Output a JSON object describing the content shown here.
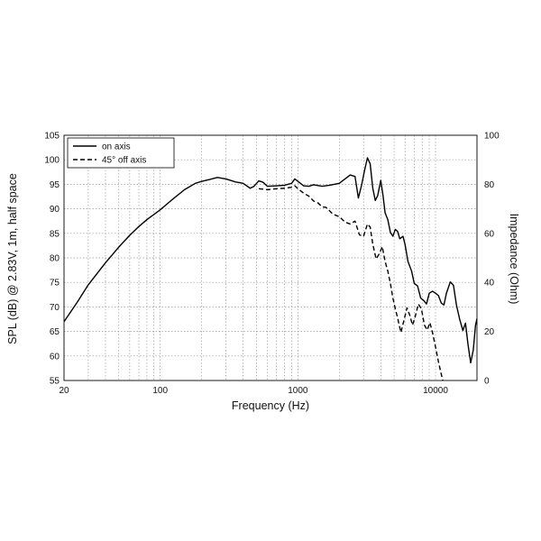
{
  "chart_data": {
    "type": "line",
    "xscale": "log",
    "xlim": [
      20,
      20000
    ],
    "ylim": [
      55,
      105
    ],
    "y2lim": [
      0,
      100
    ],
    "xlabel": "Frequency (Hz)",
    "ylabel": "SPL (dB) @ 2.83V, 1m, half space",
    "y2label": "Impedance (Ohm)",
    "x_ticks": [
      20,
      100,
      1000,
      10000
    ],
    "x_tick_labels": [
      "20",
      "100",
      "1000",
      "10000"
    ],
    "y_ticks": [
      55,
      60,
      65,
      70,
      75,
      80,
      85,
      90,
      95,
      100,
      105
    ],
    "y_tick_labels": [
      "55",
      "60",
      "65",
      "70",
      "75",
      "80",
      "85",
      "90",
      "95",
      "100",
      "105"
    ],
    "y2_ticks": [
      0,
      20,
      40,
      60,
      80,
      100
    ],
    "y2_tick_labels": [
      "0",
      "20",
      "40",
      "60",
      "80",
      "100"
    ],
    "grid": true,
    "legend": "top-left",
    "series": [
      {
        "name": "on axis",
        "style": "solid",
        "color": "#000000",
        "points": [
          [
            20,
            67
          ],
          [
            25,
            71
          ],
          [
            30,
            74.5
          ],
          [
            40,
            79
          ],
          [
            50,
            82.2
          ],
          [
            60,
            84.6
          ],
          [
            70,
            86.4
          ],
          [
            80,
            87.8
          ],
          [
            100,
            89.8
          ],
          [
            120,
            91.7
          ],
          [
            150,
            93.9
          ],
          [
            180,
            95.2
          ],
          [
            200,
            95.6
          ],
          [
            230,
            96
          ],
          [
            260,
            96.4
          ],
          [
            300,
            96.1
          ],
          [
            350,
            95.5
          ],
          [
            400,
            95.2
          ],
          [
            450,
            94.2
          ],
          [
            480,
            94.6
          ],
          [
            520,
            95.7
          ],
          [
            560,
            95.4
          ],
          [
            600,
            94.6
          ],
          [
            700,
            94.7
          ],
          [
            800,
            94.8
          ],
          [
            900,
            95.2
          ],
          [
            950,
            96.1
          ],
          [
            1000,
            95.6
          ],
          [
            1100,
            94.7
          ],
          [
            1200,
            94.6
          ],
          [
            1300,
            94.9
          ],
          [
            1500,
            94.6
          ],
          [
            1700,
            94.8
          ],
          [
            2000,
            95.2
          ],
          [
            2200,
            96.1
          ],
          [
            2400,
            96.9
          ],
          [
            2600,
            96.6
          ],
          [
            2750,
            92.2
          ],
          [
            2900,
            94.8
          ],
          [
            3050,
            97.8
          ],
          [
            3200,
            100.4
          ],
          [
            3350,
            99.2
          ],
          [
            3500,
            94.2
          ],
          [
            3650,
            91.7
          ],
          [
            3800,
            92.7
          ],
          [
            4000,
            95.8
          ],
          [
            4150,
            92.8
          ],
          [
            4300,
            89.2
          ],
          [
            4500,
            87.8
          ],
          [
            4700,
            85.2
          ],
          [
            4900,
            84.4
          ],
          [
            5100,
            85.8
          ],
          [
            5300,
            85.4
          ],
          [
            5500,
            83.9
          ],
          [
            5800,
            84.4
          ],
          [
            6000,
            82.8
          ],
          [
            6300,
            79.3
          ],
          [
            6700,
            77.3
          ],
          [
            7000,
            74.8
          ],
          [
            7400,
            74.3
          ],
          [
            7800,
            71.8
          ],
          [
            8200,
            71.3
          ],
          [
            8600,
            70.6
          ],
          [
            9000,
            72.8
          ],
          [
            9500,
            73.2
          ],
          [
            10000,
            72.8
          ],
          [
            10500,
            72.3
          ],
          [
            11000,
            70.8
          ],
          [
            11500,
            70.4
          ],
          [
            12000,
            72.8
          ],
          [
            12800,
            75.1
          ],
          [
            13500,
            74.4
          ],
          [
            14200,
            70.3
          ],
          [
            15000,
            67.4
          ],
          [
            15800,
            65.2
          ],
          [
            16500,
            66.7
          ],
          [
            17200,
            62.4
          ],
          [
            18000,
            58.6
          ],
          [
            18800,
            61.2
          ],
          [
            19500,
            66.2
          ],
          [
            20000,
            67.6
          ]
        ]
      },
      {
        "name": "45° off axis",
        "style": "dashed",
        "color": "#000000",
        "points": [
          [
            520,
            94.1
          ],
          [
            600,
            93.9
          ],
          [
            700,
            94.1
          ],
          [
            800,
            94.2
          ],
          [
            900,
            94.4
          ],
          [
            950,
            94.7
          ],
          [
            1000,
            94.1
          ],
          [
            1100,
            93.2
          ],
          [
            1200,
            92.6
          ],
          [
            1300,
            91.6
          ],
          [
            1400,
            91.2
          ],
          [
            1500,
            90.4
          ],
          [
            1600,
            90.3
          ],
          [
            1800,
            88.9
          ],
          [
            2000,
            88.4
          ],
          [
            2200,
            87.3
          ],
          [
            2400,
            86.9
          ],
          [
            2600,
            87.5
          ],
          [
            2800,
            84.7
          ],
          [
            3000,
            84.4
          ],
          [
            3200,
            86.9
          ],
          [
            3350,
            86.3
          ],
          [
            3500,
            82.8
          ],
          [
            3700,
            79.8
          ],
          [
            3900,
            80.8
          ],
          [
            4100,
            82.3
          ],
          [
            4300,
            79.3
          ],
          [
            4500,
            77.3
          ],
          [
            4700,
            74.8
          ],
          [
            4900,
            71.8
          ],
          [
            5100,
            69.6
          ],
          [
            5300,
            67.8
          ],
          [
            5600,
            64.8
          ],
          [
            5900,
            67.3
          ],
          [
            6200,
            69.8
          ],
          [
            6500,
            68.3
          ],
          [
            6800,
            66.3
          ],
          [
            7100,
            67.9
          ],
          [
            7500,
            70.6
          ],
          [
            7900,
            69.6
          ],
          [
            8300,
            66.3
          ],
          [
            8700,
            65.3
          ],
          [
            9100,
            66.8
          ],
          [
            9500,
            64.8
          ],
          [
            10000,
            61.8
          ],
          [
            10500,
            58.8
          ],
          [
            11000,
            56.3
          ],
          [
            11300,
            55
          ]
        ]
      }
    ]
  },
  "icons": {}
}
